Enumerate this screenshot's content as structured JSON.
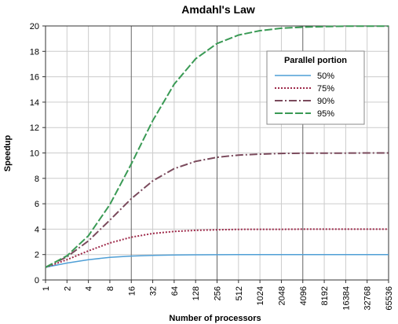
{
  "chart_data": {
    "type": "line",
    "title": "Amdahl's Law",
    "xlabel": "Number of processors",
    "ylabel": "Speedup",
    "x_scale": "log2",
    "x": [
      1,
      2,
      4,
      8,
      16,
      32,
      64,
      128,
      256,
      512,
      1024,
      2048,
      4096,
      8192,
      16384,
      32768,
      65536
    ],
    "x_tick_labels": [
      "1",
      "2",
      "4",
      "8",
      "16",
      "32",
      "64",
      "128",
      "256",
      "512",
      "1024",
      "2048",
      "4096",
      "8192",
      "16384",
      "32768",
      "65536"
    ],
    "ylim": [
      0,
      20
    ],
    "y_ticks": [
      0,
      2,
      4,
      6,
      8,
      10,
      12,
      14,
      16,
      18,
      20
    ],
    "y_tick_labels": [
      "0",
      "2",
      "4",
      "6",
      "8",
      "10",
      "12",
      "14",
      "16",
      "18",
      "20"
    ],
    "grid": true,
    "legend": {
      "title": "Parallel portion",
      "placement": "top-right"
    },
    "series": [
      {
        "name": "50%",
        "color": "#4f9fd6",
        "values": [
          1,
          1.33,
          1.6,
          1.78,
          1.88,
          1.94,
          1.97,
          1.98,
          1.99,
          2.0,
          2.0,
          2.0,
          2.0,
          2.0,
          2.0,
          2.0,
          2.0
        ]
      },
      {
        "name": "75%",
        "color": "#9e2a4a",
        "values": [
          1,
          1.6,
          2.29,
          2.91,
          3.37,
          3.66,
          3.82,
          3.91,
          3.95,
          3.98,
          3.99,
          3.99,
          4.0,
          4.0,
          4.0,
          4.0,
          4.0
        ]
      },
      {
        "name": "90%",
        "color": "#7a4a5c",
        "values": [
          1,
          1.82,
          3.08,
          4.71,
          6.4,
          7.8,
          8.77,
          9.34,
          9.66,
          9.83,
          9.91,
          9.96,
          9.98,
          9.99,
          9.99,
          10.0,
          10.0
        ]
      },
      {
        "name": "95%",
        "color": "#3a9a55",
        "values": [
          1,
          1.9,
          3.48,
          5.93,
          9.14,
          12.55,
          15.42,
          17.41,
          18.62,
          19.28,
          19.63,
          19.82,
          19.91,
          19.95,
          19.98,
          19.99,
          19.99
        ]
      }
    ]
  }
}
